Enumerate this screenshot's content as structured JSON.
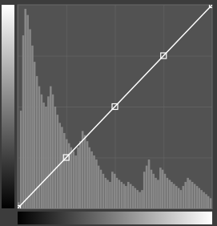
{
  "chart_data": {
    "type": "bar",
    "xlim": [
      0,
      1
    ],
    "ylim": [
      0,
      1
    ],
    "xticks": [
      0.25,
      0.5,
      0.75
    ],
    "yticks": [
      0.25,
      0.5,
      0.75
    ],
    "grid": true,
    "tick_labels": false,
    "series": [
      {
        "type": "bar",
        "color": "#888888",
        "x": [
          0.005,
          0.017,
          0.029,
          0.04,
          0.052,
          0.064,
          0.076,
          0.087,
          0.099,
          0.111,
          0.123,
          0.134,
          0.146,
          0.158,
          0.17,
          0.181,
          0.193,
          0.205,
          0.217,
          0.228,
          0.24,
          0.252,
          0.264,
          0.275,
          0.287,
          0.299,
          0.311,
          0.322,
          0.334,
          0.346,
          0.358,
          0.369,
          0.381,
          0.393,
          0.405,
          0.416,
          0.428,
          0.44,
          0.452,
          0.463,
          0.475,
          0.487,
          0.499,
          0.51,
          0.522,
          0.534,
          0.546,
          0.557,
          0.569,
          0.581,
          0.593,
          0.604,
          0.616,
          0.628,
          0.64,
          0.651,
          0.663,
          0.675,
          0.687,
          0.698,
          0.71,
          0.722,
          0.734,
          0.745,
          0.757,
          0.769,
          0.781,
          0.792,
          0.804,
          0.816,
          0.828,
          0.839,
          0.851,
          0.863,
          0.875,
          0.886,
          0.898,
          0.91,
          0.922,
          0.933,
          0.945,
          0.957,
          0.969,
          0.98,
          0.992
        ],
        "values": [
          0.03,
          0.48,
          0.85,
          0.98,
          0.95,
          0.88,
          0.8,
          0.72,
          0.65,
          0.6,
          0.56,
          0.52,
          0.5,
          0.55,
          0.6,
          0.56,
          0.5,
          0.46,
          0.42,
          0.4,
          0.37,
          0.34,
          0.32,
          0.3,
          0.28,
          0.26,
          0.3,
          0.33,
          0.38,
          0.36,
          0.33,
          0.3,
          0.28,
          0.26,
          0.24,
          0.21,
          0.19,
          0.17,
          0.15,
          0.14,
          0.13,
          0.18,
          0.17,
          0.15,
          0.14,
          0.13,
          0.12,
          0.11,
          0.13,
          0.12,
          0.11,
          0.1,
          0.09,
          0.08,
          0.09,
          0.18,
          0.21,
          0.24,
          0.19,
          0.17,
          0.15,
          0.14,
          0.2,
          0.19,
          0.17,
          0.15,
          0.14,
          0.13,
          0.12,
          0.11,
          0.1,
          0.09,
          0.11,
          0.13,
          0.15,
          0.14,
          0.13,
          0.12,
          0.11,
          0.1,
          0.09,
          0.08,
          0.07,
          0.06,
          0.05
        ]
      },
      {
        "type": "line",
        "color": "#ffffff",
        "marker": "square",
        "x": [
          0.0,
          0.25,
          0.5,
          0.75,
          1.0
        ],
        "values": [
          0.0,
          0.25,
          0.5,
          0.75,
          1.0
        ]
      }
    ]
  }
}
